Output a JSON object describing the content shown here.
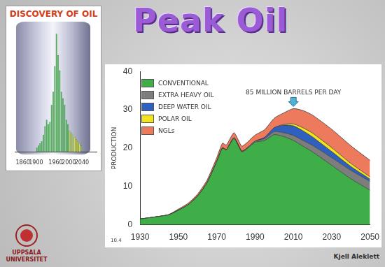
{
  "page": {
    "title": "Peak Oil",
    "logo_text": [
      "UPPSALA",
      "UNIVERSITET"
    ],
    "credit": "Kjell Aleklett",
    "slide_number": "10.4"
  },
  "chart_data": [
    {
      "type": "area",
      "stacked": true,
      "y_label": "PRODUCTION",
      "x": [
        1930,
        1940,
        1945,
        1950,
        1955,
        1960,
        1965,
        1970,
        1973,
        1975,
        1979,
        1983,
        1985,
        1990,
        1995,
        2000,
        2005,
        2010,
        2015,
        2020,
        2030,
        2040,
        2050
      ],
      "series": [
        {
          "name": "CONVENTIONAL",
          "color": "#3fae49",
          "values": [
            1.5,
            2.2,
            2.6,
            3.8,
            5.2,
            7.5,
            11,
            16.5,
            20,
            19.5,
            22.5,
            19,
            19.5,
            21.5,
            22,
            23.5,
            23,
            22,
            20.5,
            19,
            15.5,
            12,
            9
          ]
        },
        {
          "name": "EXTRA HEAVY OIL",
          "color": "#7d7d7d",
          "values": [
            0,
            0,
            0,
            0,
            0,
            0,
            0,
            0,
            0.1,
            0.1,
            0.2,
            0.2,
            0.2,
            0.3,
            0.5,
            0.8,
            1.0,
            1.3,
            1.5,
            1.7,
            2.0,
            2.2,
            2.3
          ]
        },
        {
          "name": "DEEP WATER OIL",
          "color": "#2f5fbf",
          "values": [
            0,
            0,
            0,
            0,
            0,
            0,
            0,
            0,
            0,
            0,
            0,
            0,
            0,
            0,
            0.3,
            1.0,
            2.0,
            2.5,
            2.5,
            2.2,
            1.6,
            1.0,
            0.6
          ]
        },
        {
          "name": "POLAR OIL",
          "color": "#f2e31b",
          "values": [
            0,
            0,
            0,
            0,
            0,
            0,
            0,
            0,
            0,
            0,
            0,
            0,
            0,
            0,
            0,
            0,
            0.2,
            0.5,
            0.8,
            1.0,
            1.0,
            0.8,
            0.6
          ]
        },
        {
          "name": "NGLs",
          "color": "#ee7a5e",
          "values": [
            0,
            0,
            0.1,
            0.3,
            0.4,
            0.5,
            0.7,
            1.0,
            1.2,
            1.2,
            1.3,
            1.3,
            1.4,
            1.6,
            2.0,
            2.5,
            3.0,
            4.0,
            4.5,
            4.7,
            4.8,
            4.6,
            4.3
          ]
        }
      ],
      "xlim": [
        1930,
        2050
      ],
      "xticks": [
        1930,
        1950,
        1970,
        1990,
        2010,
        2030,
        2050
      ],
      "ylim": [
        0,
        40
      ],
      "yticks": [
        0,
        10,
        20,
        30,
        40
      ],
      "grid": false,
      "legend": "upper left",
      "annotations": [
        {
          "text": "85 MILLION BARRELS PER DAY",
          "x": 2010
        }
      ]
    },
    {
      "type": "histogram",
      "title": "DISCOVERY OF OIL",
      "bins": [
        1900,
        1905,
        1910,
        1915,
        1920,
        1925,
        1930,
        1935,
        1940,
        1945,
        1950,
        1955,
        1960,
        1965,
        1970,
        1975,
        1980,
        1985,
        1990,
        1995,
        2000,
        2005,
        2010,
        2015,
        2020,
        2025,
        2030,
        2035,
        2040
      ],
      "values": [
        2,
        3,
        4,
        5,
        8,
        12,
        15,
        13,
        14,
        22,
        28,
        40,
        55,
        45,
        38,
        28,
        25,
        22,
        15,
        13,
        10,
        9,
        8,
        7,
        6,
        5,
        4,
        3
      ],
      "colors": [
        "#3fae49",
        "#3fae49",
        "#3fae49",
        "#3fae49",
        "#3fae49",
        "#3fae49",
        "#3fae49",
        "#3fae49",
        "#3fae49",
        "#3fae49",
        "#3fae49",
        "#3fae49",
        "#3fae49",
        "#3fae49",
        "#3fae49",
        "#3fae49",
        "#3fae49",
        "#3fae49",
        "#3fae49",
        "#3fae49",
        "#b8d432",
        "#b8d432",
        "#e3e02a",
        "#e3e02a",
        "#e3e02a",
        "#e3e02a",
        "#e3e02a",
        "#e3e02a"
      ],
      "xlim": [
        1860,
        2060
      ],
      "xticks": [
        1860,
        1900,
        1960,
        2000,
        2040
      ],
      "ylim": [
        0,
        60
      ],
      "tick_labels": "x",
      "grid": false
    }
  ]
}
